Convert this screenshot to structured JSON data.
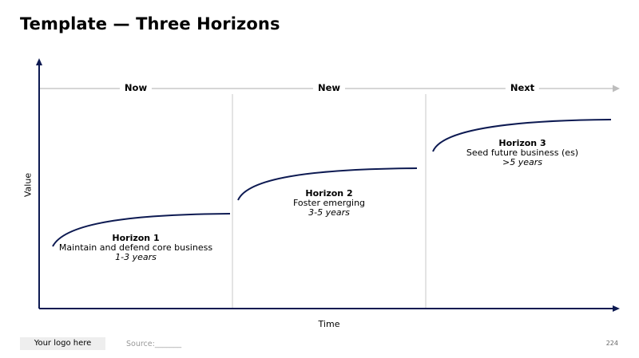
{
  "title": "Template — Three Horizons",
  "phases": [
    {
      "label": "Now"
    },
    {
      "label": "New"
    },
    {
      "label": "Next"
    }
  ],
  "horizons": [
    {
      "title": "Horizon 1",
      "description": "Maintain and defend core business",
      "duration": "1-3 years"
    },
    {
      "title": "Horizon 2",
      "description": "Foster emerging",
      "duration": "3-5 years"
    },
    {
      "title": "Horizon 3",
      "description": "Seed future business (es)",
      "duration": ">5 years"
    }
  ],
  "axes": {
    "y_label": "Value",
    "x_label": "Time"
  },
  "footer": {
    "logo": "Your logo here",
    "source": "Source:_______",
    "page_number": "224"
  },
  "colors": {
    "navy": "#0d1a52",
    "grey_line": "#c8c8c8",
    "arrow_grey": "#bdbdbd"
  }
}
